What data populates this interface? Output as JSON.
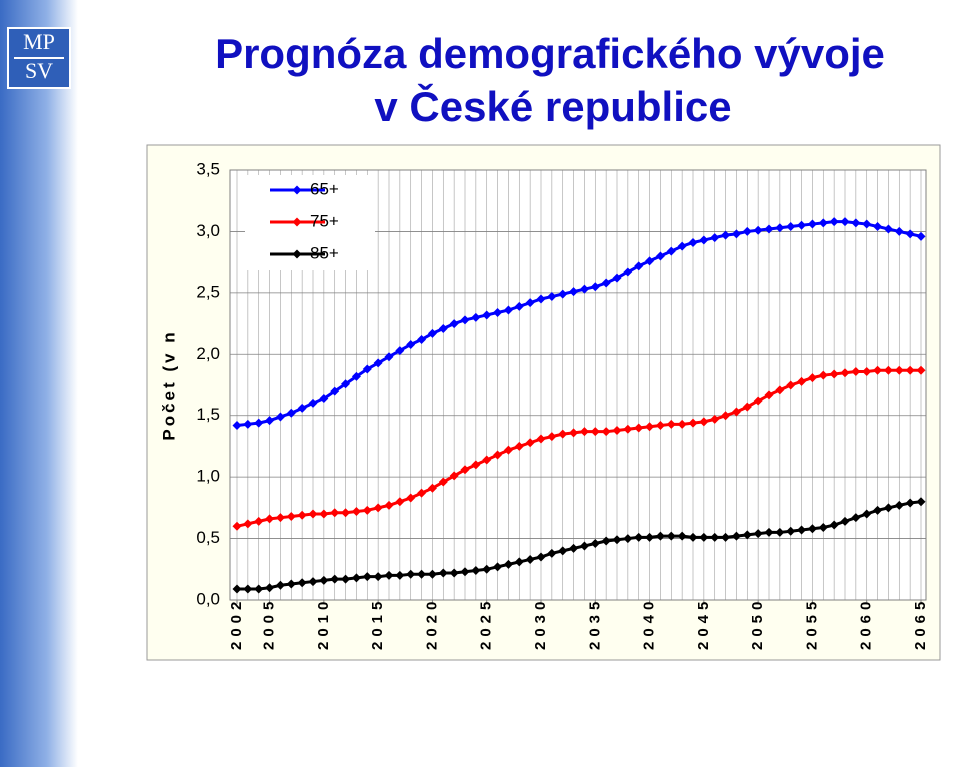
{
  "logo": {
    "top": "MP",
    "bottom": "SV"
  },
  "chart_data": {
    "type": "line",
    "title": [
      "Prognóza demografického vývoje",
      "v České republice"
    ],
    "y_label": "Počet (v n",
    "x": [
      2002,
      2003,
      2004,
      2005,
      2006,
      2007,
      2008,
      2009,
      2010,
      2011,
      2012,
      2013,
      2014,
      2015,
      2016,
      2017,
      2018,
      2019,
      2020,
      2021,
      2022,
      2023,
      2024,
      2025,
      2026,
      2027,
      2028,
      2029,
      2030,
      2031,
      2032,
      2033,
      2034,
      2035,
      2036,
      2037,
      2038,
      2039,
      2040,
      2041,
      2042,
      2043,
      2044,
      2045,
      2046,
      2047,
      2048,
      2049,
      2050,
      2051,
      2052,
      2053,
      2054,
      2055,
      2056,
      2057,
      2058,
      2059,
      2060,
      2061,
      2062,
      2063,
      2064,
      2065
    ],
    "xlim": [
      2002,
      2065
    ],
    "xticks": [
      2002,
      2005,
      2010,
      2015,
      2020,
      2025,
      2030,
      2035,
      2040,
      2045,
      2050,
      2055,
      2060,
      2065
    ],
    "ylim": [
      0,
      3.5
    ],
    "yticks": [
      {
        "value": 0,
        "label": "0,0"
      },
      {
        "value": 0.5,
        "label": "0,5"
      },
      {
        "value": 1,
        "label": "1,0"
      },
      {
        "value": 1.5,
        "label": "1,5"
      },
      {
        "value": 2,
        "label": "2,0"
      },
      {
        "value": 2.5,
        "label": "2,5"
      },
      {
        "value": 3,
        "label": "3,0"
      },
      {
        "value": 3.5,
        "label": "3,5"
      }
    ],
    "grid": true,
    "legend": "upper-left",
    "series": [
      {
        "name": "65+",
        "color": "#0000ff",
        "values": [
          1.42,
          1.43,
          1.44,
          1.46,
          1.49,
          1.52,
          1.56,
          1.6,
          1.64,
          1.7,
          1.76,
          1.82,
          1.88,
          1.93,
          1.98,
          2.03,
          2.08,
          2.12,
          2.17,
          2.21,
          2.25,
          2.28,
          2.3,
          2.32,
          2.34,
          2.36,
          2.39,
          2.42,
          2.45,
          2.47,
          2.49,
          2.51,
          2.53,
          2.55,
          2.58,
          2.62,
          2.67,
          2.72,
          2.76,
          2.8,
          2.84,
          2.88,
          2.91,
          2.93,
          2.95,
          2.97,
          2.98,
          3.0,
          3.01,
          3.02,
          3.03,
          3.04,
          3.05,
          3.06,
          3.07,
          3.08,
          3.08,
          3.07,
          3.06,
          3.04,
          3.02,
          3.0,
          2.98,
          2.96
        ]
      },
      {
        "name": "75+",
        "color": "#ff0000",
        "values": [
          0.6,
          0.62,
          0.64,
          0.66,
          0.67,
          0.68,
          0.69,
          0.7,
          0.7,
          0.71,
          0.71,
          0.72,
          0.73,
          0.75,
          0.77,
          0.8,
          0.83,
          0.87,
          0.91,
          0.96,
          1.01,
          1.06,
          1.1,
          1.14,
          1.18,
          1.22,
          1.25,
          1.28,
          1.31,
          1.33,
          1.35,
          1.36,
          1.37,
          1.37,
          1.37,
          1.38,
          1.39,
          1.4,
          1.41,
          1.42,
          1.43,
          1.43,
          1.44,
          1.45,
          1.47,
          1.5,
          1.53,
          1.57,
          1.62,
          1.67,
          1.71,
          1.75,
          1.78,
          1.81,
          1.83,
          1.84,
          1.85,
          1.86,
          1.86,
          1.87,
          1.87,
          1.87,
          1.87,
          1.87
        ]
      },
      {
        "name": "85+",
        "color": "#000000",
        "values": [
          0.09,
          0.09,
          0.09,
          0.1,
          0.12,
          0.13,
          0.14,
          0.15,
          0.16,
          0.17,
          0.17,
          0.18,
          0.19,
          0.19,
          0.2,
          0.2,
          0.21,
          0.21,
          0.21,
          0.22,
          0.22,
          0.23,
          0.24,
          0.25,
          0.27,
          0.29,
          0.31,
          0.33,
          0.35,
          0.38,
          0.4,
          0.42,
          0.44,
          0.46,
          0.48,
          0.49,
          0.5,
          0.51,
          0.51,
          0.52,
          0.52,
          0.52,
          0.51,
          0.51,
          0.51,
          0.51,
          0.52,
          0.53,
          0.54,
          0.55,
          0.55,
          0.56,
          0.57,
          0.58,
          0.59,
          0.61,
          0.64,
          0.67,
          0.7,
          0.73,
          0.75,
          0.77,
          0.79,
          0.8
        ]
      }
    ]
  }
}
